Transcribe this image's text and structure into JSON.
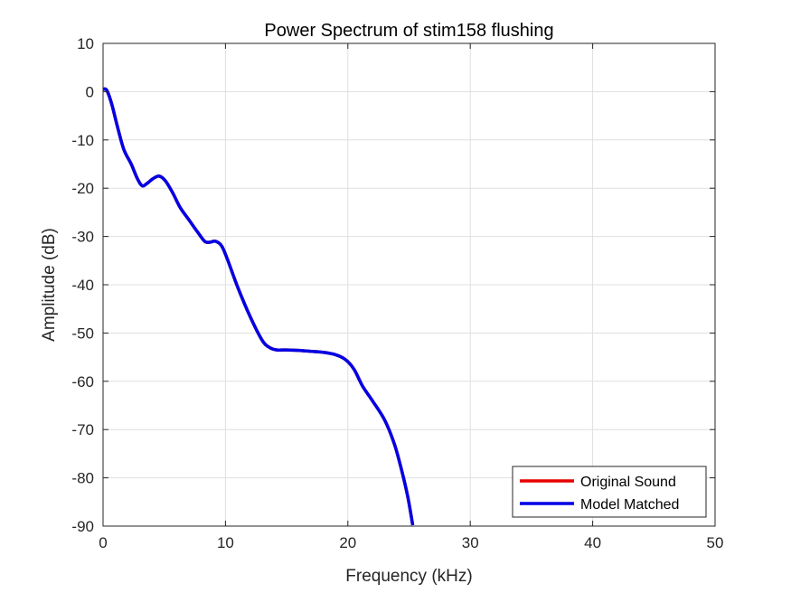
{
  "chart_data": {
    "type": "line",
    "title": "Power Spectrum of stim158 flushing",
    "xlabel": "Frequency (kHz)",
    "ylabel": "Amplitude (dB)",
    "xlim": [
      0,
      50
    ],
    "ylim": [
      -90,
      10
    ],
    "xticks": [
      0,
      10,
      20,
      30,
      40,
      50
    ],
    "yticks": [
      10,
      0,
      -10,
      -20,
      -30,
      -40,
      -50,
      -60,
      -70,
      -80,
      -90
    ],
    "grid": true,
    "legend_position": "bottom-right",
    "series": [
      {
        "name": "Original Sound",
        "color": "#e60000",
        "x": [
          0,
          0.3,
          0.7,
          1.2,
          1.7,
          2.3,
          2.8,
          3.2,
          3.6,
          4.1,
          4.6,
          5.1,
          5.7,
          6.3,
          7.0,
          7.7,
          8.3,
          8.7,
          9.2,
          9.7,
          10.2,
          11.0,
          12.0,
          13.0,
          13.6,
          14.2,
          15.0,
          16.0,
          17.0,
          18.0,
          19.0,
          19.8,
          20.5,
          21.2,
          22.0,
          23.0,
          23.8,
          24.4,
          24.9,
          25.3
        ],
        "y": [
          0.5,
          0.3,
          -2.5,
          -7.5,
          -12.0,
          -15.0,
          -18.0,
          -19.5,
          -19.0,
          -18.0,
          -17.5,
          -18.5,
          -21.0,
          -24.0,
          -26.5,
          -29.0,
          -31.0,
          -31.2,
          -31.0,
          -32.0,
          -35.0,
          -40.5,
          -46.5,
          -51.5,
          -53.0,
          -53.5,
          -53.5,
          -53.6,
          -53.8,
          -54.0,
          -54.5,
          -55.5,
          -57.5,
          -61.0,
          -64.0,
          -68.0,
          -73.0,
          -78.5,
          -84.0,
          -89.8
        ]
      },
      {
        "name": "Model Matched",
        "color": "#0000e6",
        "x": [
          0,
          0.3,
          0.7,
          1.2,
          1.7,
          2.3,
          2.8,
          3.2,
          3.6,
          4.1,
          4.6,
          5.1,
          5.7,
          6.3,
          7.0,
          7.7,
          8.3,
          8.7,
          9.2,
          9.7,
          10.2,
          11.0,
          12.0,
          13.0,
          13.6,
          14.2,
          15.0,
          16.0,
          17.0,
          18.0,
          19.0,
          19.8,
          20.5,
          21.2,
          22.0,
          23.0,
          23.8,
          24.4,
          24.9,
          25.3
        ],
        "y": [
          0.5,
          0.3,
          -2.5,
          -7.5,
          -12.0,
          -15.0,
          -18.0,
          -19.5,
          -19.0,
          -18.0,
          -17.5,
          -18.5,
          -21.0,
          -24.0,
          -26.5,
          -29.0,
          -31.0,
          -31.2,
          -31.0,
          -32.0,
          -35.0,
          -40.5,
          -46.5,
          -51.5,
          -53.0,
          -53.5,
          -53.5,
          -53.6,
          -53.8,
          -54.0,
          -54.5,
          -55.5,
          -57.5,
          -61.0,
          -64.0,
          -68.0,
          -73.0,
          -78.5,
          -84.0,
          -89.8
        ]
      }
    ]
  }
}
